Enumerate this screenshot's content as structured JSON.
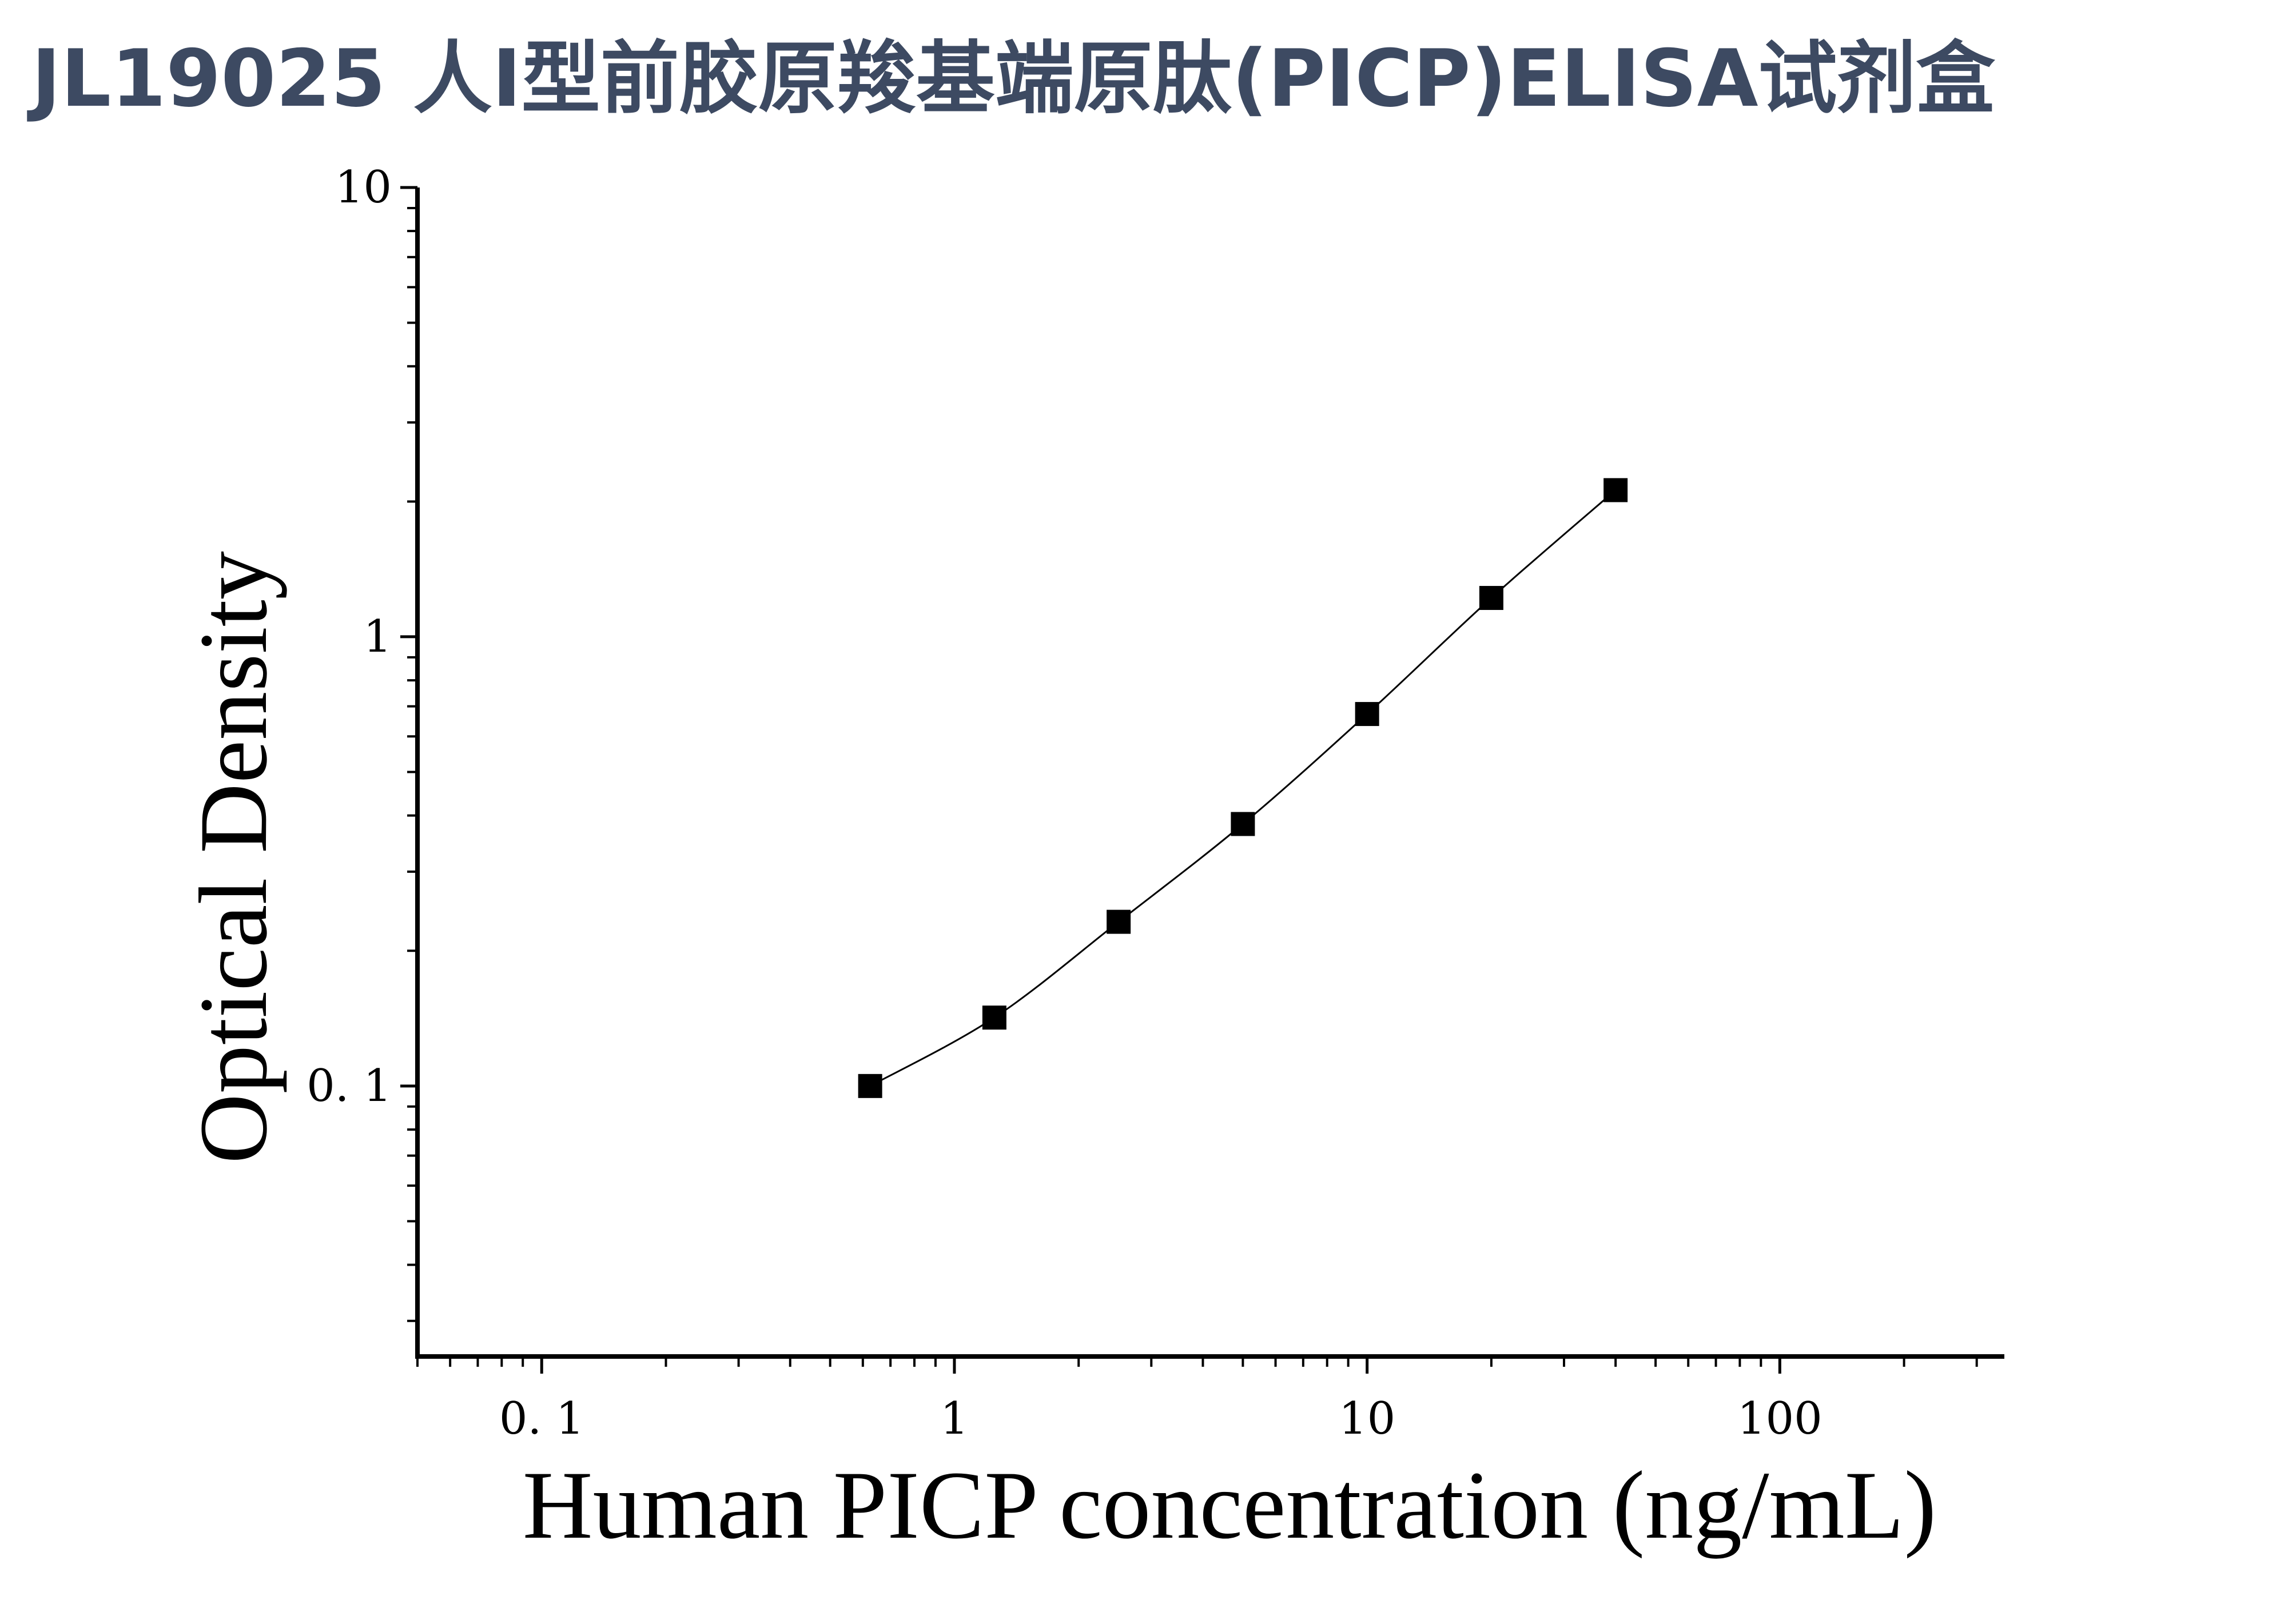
{
  "title": "JL19025 人Ⅰ型前胶原羧基端原肽(PICP)ELISA试剂盒",
  "colors": {
    "title": "#3d4a62",
    "axis": "#000000",
    "marker": "#000000",
    "curve": "#000000"
  },
  "chart_data": {
    "type": "scatter",
    "xlabel": "Human PICP concentration (ng/mL)",
    "ylabel": "Optical Density",
    "x_scale": "log",
    "y_scale": "log",
    "xlim": [
      0.05,
      350
    ],
    "ylim": [
      0.025,
      10
    ],
    "x_ticks": [
      {
        "value": 0.1,
        "label": "0. 1"
      },
      {
        "value": 1,
        "label": "1"
      },
      {
        "value": 10,
        "label": "10"
      },
      {
        "value": 100,
        "label": "100"
      }
    ],
    "y_ticks": [
      {
        "value": 0.1,
        "label": "0. 1"
      },
      {
        "value": 1,
        "label": "1"
      },
      {
        "value": 10,
        "label": "10"
      }
    ],
    "grid": false,
    "legend": "none",
    "marker": "square",
    "fit_curve": true,
    "series": [
      {
        "x": [
          0.625,
          1.25,
          2.5,
          5,
          10,
          20,
          40
        ],
        "y": [
          0.1,
          0.142,
          0.232,
          0.383,
          0.673,
          1.22,
          2.12
        ]
      }
    ]
  }
}
